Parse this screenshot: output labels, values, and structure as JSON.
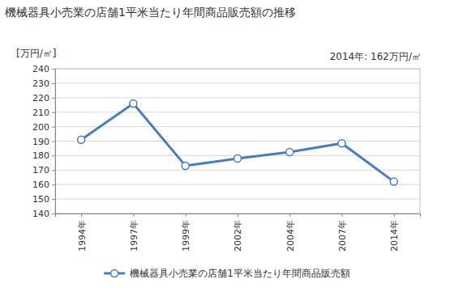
{
  "chart_data": {
    "type": "line",
    "title": "機械器具小売業の店舗1平米当たり年間商品販売額の推移",
    "ylabel": "[万円/㎡]",
    "annotations": [
      "2014年: 162万円/㎡"
    ],
    "categories": [
      "1994年",
      "1997年",
      "1999年",
      "2002年",
      "2004年",
      "2007年",
      "2014年"
    ],
    "series": [
      {
        "name": "機械器具小売業の店舗1平米当たり年間商品販売額",
        "color": "#4a7ebb",
        "marker": "circle",
        "values": [
          191,
          216,
          173,
          178,
          182.5,
          188.5,
          162
        ]
      }
    ],
    "ylim": [
      140,
      240
    ],
    "yticks": [
      140,
      150,
      160,
      170,
      180,
      190,
      200,
      210,
      220,
      230,
      240
    ],
    "grid": true,
    "legend": "bottom"
  }
}
